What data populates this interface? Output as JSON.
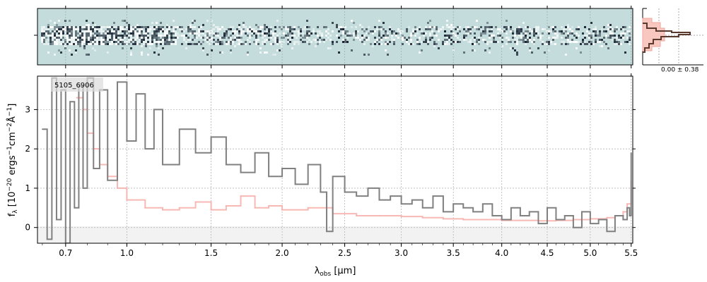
{
  "chart_data": [
    {
      "type": "heatmap",
      "panel": "2d-spectrum",
      "description_text": "",
      "colormap": [
        "#1a2433",
        "#c4dcdb",
        "#ffffff"
      ],
      "background_color": "#c4dcdb"
    },
    {
      "type": "histogram",
      "panel": "pixel-distribution",
      "annotation": "0.00 ± 0.38",
      "fill_color": "#f8c8c0",
      "line_color": "#5a3a2e"
    },
    {
      "type": "line",
      "panel": "1d-spectrum",
      "label": "5105_6906",
      "xlabel_main": "λ",
      "xlabel_sub": "obs",
      "xlabel_unit": " [μm]",
      "ylabel": "f_λ [10^-20 ergs^-1cm^-2Å^-1]",
      "x_scale": "sqrt",
      "xlim": [
        0.58,
        5.52
      ],
      "ylim": [
        -0.4,
        3.85
      ],
      "x_ticks": [
        0.7,
        1.0,
        1.5,
        2.0,
        2.5,
        3.0,
        3.5,
        4.0,
        4.5,
        5.0,
        5.5
      ],
      "x_tick_labels": [
        "0.7",
        "1.0",
        "1.5",
        "2.0",
        "2.5",
        "3.0",
        "3.5",
        "4.0",
        "4.5",
        "5.0",
        "5.5"
      ],
      "y_ticks": [
        0,
        1,
        2,
        3
      ],
      "y_tick_labels": [
        "0",
        "1",
        "2",
        "3"
      ],
      "grid": true,
      "series": [
        {
          "role": "flux",
          "color": "#808080",
          "x": [
            0.6,
            0.62,
            0.64,
            0.66,
            0.68,
            0.7,
            0.72,
            0.74,
            0.76,
            0.78,
            0.8,
            0.83,
            0.86,
            0.9,
            0.95,
            1.0,
            1.05,
            1.1,
            1.15,
            1.2,
            1.3,
            1.4,
            1.5,
            1.6,
            1.7,
            1.8,
            1.9,
            2.0,
            2.1,
            2.2,
            2.3,
            2.35,
            2.4,
            2.5,
            2.6,
            2.7,
            2.8,
            2.9,
            3.0,
            3.1,
            3.2,
            3.3,
            3.4,
            3.5,
            3.6,
            3.7,
            3.8,
            3.9,
            4.0,
            4.1,
            4.2,
            4.3,
            4.4,
            4.5,
            4.6,
            4.7,
            4.8,
            4.9,
            5.0,
            5.1,
            5.2,
            5.3,
            5.4,
            5.45,
            5.48,
            5.5
          ],
          "y": [
            2.5,
            -0.3,
            3.8,
            0.2,
            3.5,
            -0.4,
            3.2,
            0.5,
            3.6,
            1.0,
            3.8,
            1.5,
            3.5,
            1.2,
            3.7,
            2.2,
            3.4,
            2.0,
            3.0,
            1.6,
            2.5,
            1.9,
            2.3,
            1.6,
            1.4,
            1.9,
            1.3,
            1.5,
            1.1,
            1.6,
            0.9,
            -0.1,
            1.3,
            0.9,
            0.8,
            1.0,
            0.7,
            0.8,
            0.6,
            0.7,
            0.5,
            0.8,
            0.4,
            0.6,
            0.5,
            0.4,
            0.6,
            0.3,
            0.2,
            0.5,
            0.3,
            0.4,
            0.1,
            0.5,
            0.2,
            0.3,
            0.0,
            0.4,
            0.1,
            0.2,
            -0.1,
            0.3,
            0.2,
            0.5,
            0.3,
            1.9
          ]
        },
        {
          "role": "model",
          "color": "#f7b0ac",
          "x": [
            0.75,
            0.78,
            0.8,
            0.83,
            0.86,
            0.9,
            0.95,
            1.0,
            1.1,
            1.2,
            1.3,
            1.4,
            1.5,
            1.6,
            1.7,
            1.8,
            1.9,
            2.0,
            2.2,
            2.4,
            2.6,
            2.8,
            3.0,
            3.2,
            3.4,
            3.6,
            3.8,
            4.0,
            4.2,
            4.4,
            4.6,
            4.8,
            5.0,
            5.2,
            5.3,
            5.4,
            5.45,
            5.5
          ],
          "y": [
            3.3,
            3.0,
            2.4,
            2.0,
            1.6,
            1.3,
            1.0,
            0.7,
            0.5,
            0.45,
            0.5,
            0.65,
            0.45,
            0.55,
            0.8,
            0.5,
            0.55,
            0.45,
            0.5,
            0.35,
            0.3,
            0.3,
            0.28,
            0.25,
            0.22,
            0.2,
            0.2,
            0.18,
            0.18,
            0.17,
            0.18,
            0.2,
            0.22,
            0.25,
            0.3,
            0.4,
            0.6,
            1.2
          ]
        }
      ]
    }
  ]
}
